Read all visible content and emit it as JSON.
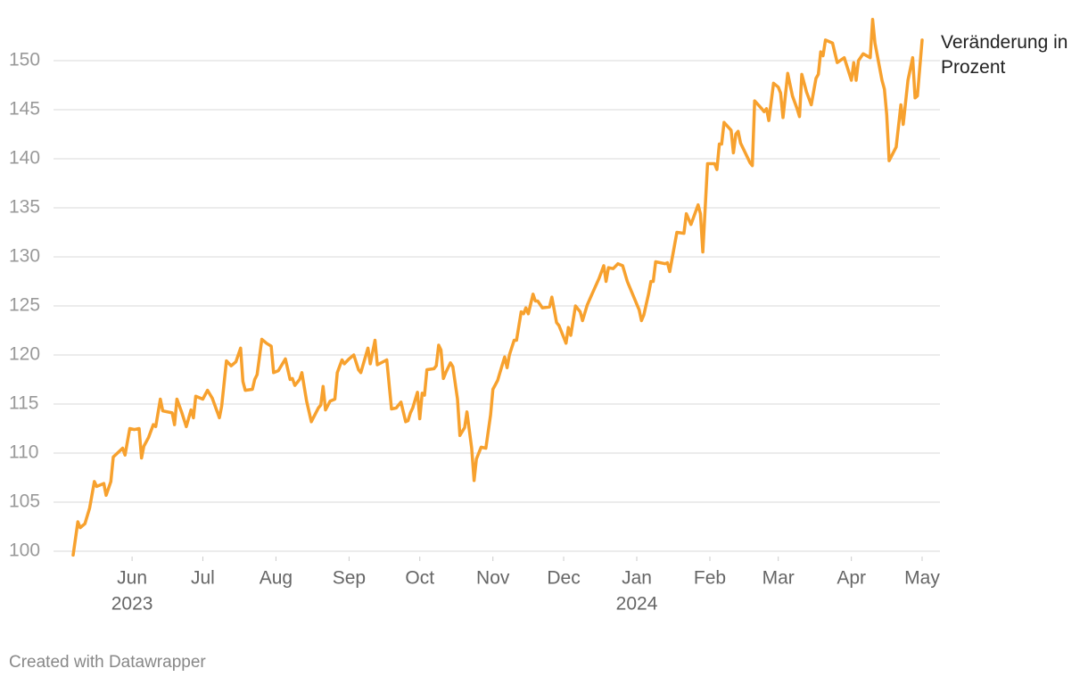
{
  "chart_data": {
    "type": "line",
    "x": [
      0,
      2,
      3,
      5,
      7,
      9,
      10,
      13,
      14,
      16,
      17,
      21,
      22,
      24,
      26,
      28,
      29,
      30,
      32,
      34,
      35,
      37,
      38,
      42,
      43,
      44,
      46,
      48,
      50,
      51,
      52,
      55,
      57,
      59,
      62,
      63,
      65,
      67,
      69,
      71,
      72,
      73,
      76,
      77,
      78,
      80,
      82,
      84,
      85,
      87,
      90,
      92,
      93,
      94,
      96,
      97,
      99,
      101,
      104,
      105,
      106,
      107,
      109,
      111,
      112,
      114,
      115,
      117,
      119,
      121,
      122,
      125,
      126,
      128,
      129,
      133,
      135,
      137,
      139,
      141,
      142,
      143,
      144,
      146,
      147,
      148,
      149,
      150,
      153,
      154,
      155,
      156,
      157,
      158,
      160,
      161,
      163,
      164,
      166,
      167,
      169,
      170,
      171,
      173,
      175,
      177,
      178,
      180,
      181,
      183,
      184,
      185,
      187,
      188,
      190,
      191,
      192,
      193,
      195,
      196,
      197,
      199,
      202,
      203,
      205,
      206,
      209,
      210,
      211,
      213,
      215,
      216,
      218,
      220,
      223,
      225,
      226,
      227,
      229,
      231,
      233,
      235,
      240,
      241,
      242,
      244,
      245,
      246,
      247,
      251,
      252,
      253,
      256,
      259,
      260,
      262,
      265,
      266,
      267,
      269,
      272,
      273,
      274,
      275,
      276,
      279,
      280,
      281,
      282,
      283,
      287,
      288,
      289,
      292,
      293,
      294,
      295,
      297,
      299,
      300,
      301,
      303,
      305,
      307,
      308,
      309,
      311,
      313,
      315,
      316,
      317,
      318,
      319,
      322,
      324,
      327,
      330,
      331,
      332,
      333,
      335,
      338,
      339,
      340,
      343,
      344,
      345,
      346,
      349,
      351,
      352,
      354,
      356,
      357,
      358,
      360
    ],
    "series": [
      {
        "name": "Veränderung in Prozent",
        "color": "#f7a12e",
        "values": [
          99.6,
          103.0,
          102.4,
          102.8,
          104.4,
          107.1,
          106.6,
          106.9,
          105.7,
          107.1,
          109.6,
          110.5,
          109.8,
          112.5,
          112.4,
          112.5,
          109.5,
          110.7,
          111.6,
          112.9,
          112.7,
          115.5,
          114.3,
          114.1,
          112.9,
          115.5,
          114.2,
          112.7,
          114.4,
          113.6,
          115.8,
          115.5,
          116.4,
          115.6,
          113.6,
          114.8,
          119.4,
          118.9,
          119.3,
          120.7,
          117.3,
          116.4,
          116.5,
          117.5,
          118.0,
          121.6,
          121.2,
          120.9,
          118.2,
          118.4,
          119.6,
          117.5,
          117.6,
          116.9,
          117.5,
          118.2,
          115.3,
          113.2,
          114.6,
          114.9,
          116.8,
          114.4,
          115.3,
          115.5,
          118.2,
          119.5,
          119.1,
          119.6,
          120.0,
          118.5,
          118.2,
          120.7,
          119.1,
          121.5,
          119.0,
          119.5,
          114.5,
          114.6,
          115.2,
          113.2,
          113.3,
          114.1,
          114.6,
          116.2,
          113.5,
          116.1,
          115.9,
          118.5,
          118.6,
          118.9,
          121.0,
          120.5,
          117.6,
          118.2,
          119.2,
          118.8,
          115.5,
          111.8,
          112.6,
          114.2,
          110.5,
          107.2,
          109.4,
          110.6,
          110.5,
          113.9,
          116.5,
          117.4,
          118.2,
          119.8,
          118.7,
          120.0,
          121.5,
          121.5,
          124.4,
          124.2,
          124.8,
          124.2,
          126.2,
          125.5,
          125.5,
          124.8,
          124.9,
          125.9,
          123.3,
          123.0,
          121.2,
          122.8,
          122.0,
          125.0,
          124.4,
          123.5,
          125.1,
          126.2,
          127.8,
          129.1,
          127.5,
          128.9,
          128.8,
          129.3,
          129.1,
          127.5,
          124.6,
          123.5,
          124.1,
          126.2,
          127.5,
          127.5,
          129.5,
          129.3,
          129.4,
          128.5,
          132.5,
          132.4,
          134.4,
          133.3,
          135.3,
          134.4,
          130.5,
          139.5,
          139.5,
          138.9,
          141.5,
          141.5,
          143.7,
          142.9,
          140.6,
          142.5,
          142.8,
          141.6,
          139.6,
          139.3,
          145.9,
          145.1,
          144.8,
          145.1,
          143.9,
          147.7,
          147.3,
          146.7,
          144.2,
          148.7,
          146.4,
          145.1,
          144.3,
          148.6,
          146.8,
          145.5,
          148.2,
          148.6,
          150.9,
          150.5,
          152.1,
          151.8,
          149.8,
          150.3,
          148.0,
          149.8,
          148.0,
          150.0,
          150.7,
          150.3,
          154.2,
          151.8,
          148.0,
          147.1,
          144.5,
          139.8,
          141.2,
          145.5,
          143.5,
          148.0,
          150.3,
          146.2,
          146.4,
          152.1
        ]
      }
    ],
    "xlim": [
      0,
      360
    ],
    "xticks": [
      {
        "value": 25,
        "label": "Jun"
      },
      {
        "value": 55,
        "label": "Jul"
      },
      {
        "value": 86,
        "label": "Aug"
      },
      {
        "value": 117,
        "label": "Sep"
      },
      {
        "value": 147,
        "label": "Oct"
      },
      {
        "value": 178,
        "label": "Nov"
      },
      {
        "value": 208,
        "label": "Dec"
      },
      {
        "value": 239,
        "label": "Jan"
      },
      {
        "value": 270,
        "label": "Feb"
      },
      {
        "value": 299,
        "label": "Mar"
      },
      {
        "value": 330,
        "label": "Apr"
      },
      {
        "value": 360,
        "label": "May"
      }
    ],
    "year_labels": [
      {
        "value": 25,
        "label": "2023"
      },
      {
        "value": 239,
        "label": "2024"
      }
    ],
    "ylim": [
      100,
      155
    ],
    "yticks": [
      100,
      105,
      110,
      115,
      120,
      125,
      130,
      135,
      140,
      145,
      150
    ],
    "grid": true,
    "credit": "Created with Datawrapper"
  }
}
